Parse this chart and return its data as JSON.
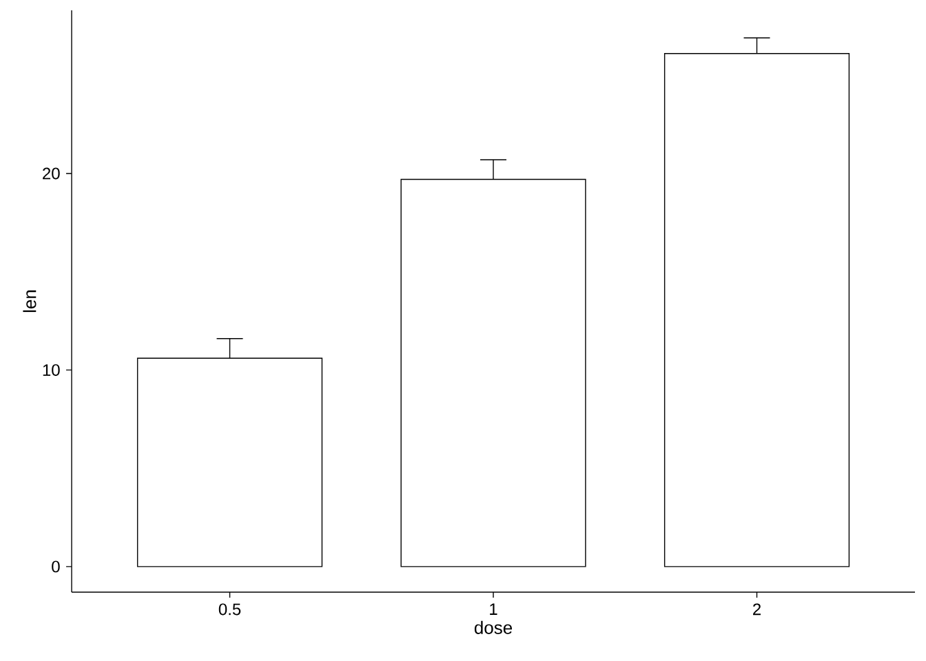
{
  "chart_data": {
    "type": "bar",
    "categories": [
      "0.5",
      "1",
      "2"
    ],
    "values": [
      10.6,
      19.7,
      26.1
    ],
    "errors": [
      [
        10.6,
        11.6
      ],
      [
        19.7,
        20.7
      ],
      [
        26.1,
        26.9
      ]
    ],
    "color": "#ffffff",
    "xlabel": "dose",
    "ylabel": "len",
    "ylim": [
      -1.3,
      28.3
    ],
    "yticks": [
      0,
      10,
      20
    ]
  }
}
